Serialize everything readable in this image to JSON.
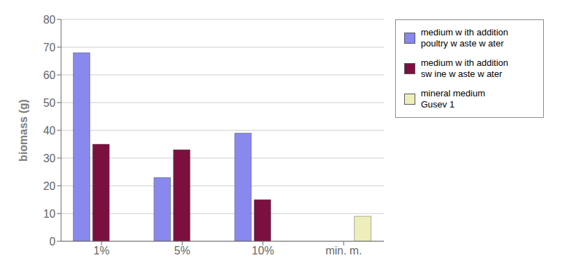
{
  "chart_data": {
    "type": "bar",
    "categories": [
      "1%",
      "5%",
      "10%",
      "min. m."
    ],
    "series": [
      {
        "name": "medium w ith addition\npoultry w aste w ater",
        "color": "#8888ee",
        "values": [
          68,
          23,
          39,
          null
        ]
      },
      {
        "name": "medium w ith addition\nsw ine w aste w ater",
        "color": "#7b1040",
        "values": [
          35,
          33,
          15,
          null
        ]
      },
      {
        "name": "mineral medium\nGusev 1",
        "color": "#eeeebb",
        "values": [
          null,
          null,
          null,
          9
        ]
      }
    ],
    "ylabel": "biomass (g)",
    "ylim": [
      0,
      80
    ],
    "yticks": [
      0,
      10,
      20,
      30,
      40,
      50,
      60,
      70,
      80
    ],
    "grid": true,
    "legend": "right"
  }
}
